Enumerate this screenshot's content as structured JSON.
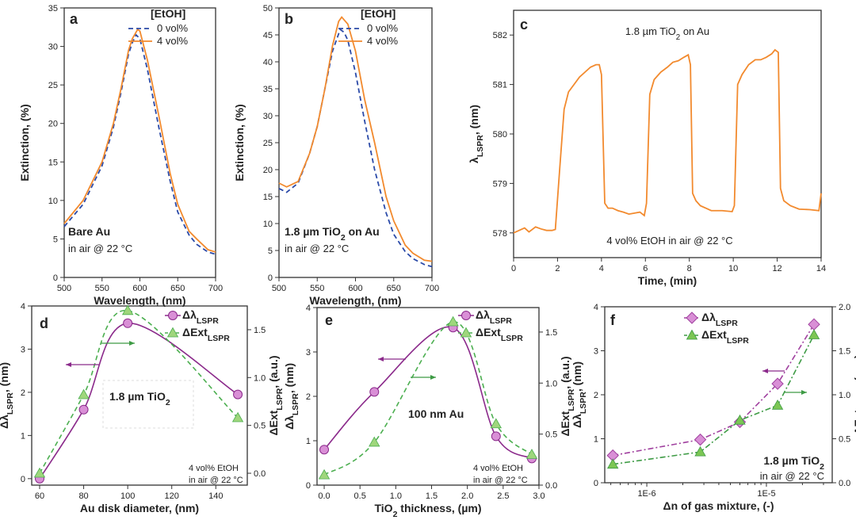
{
  "chart_data": [
    {
      "type": "line",
      "panel_label": "a",
      "xlabel": [
        {
          "t": "Wavelength, (nm)"
        }
      ],
      "ylabel": [
        {
          "t": "Extinction, (%)"
        }
      ],
      "xlim": [
        500,
        700
      ],
      "ylim": [
        0,
        35
      ],
      "xticks": [
        "500",
        "550",
        "600",
        "650",
        "700"
      ],
      "yticks": [
        "0",
        "5",
        "10",
        "15",
        "20",
        "25",
        "30",
        "35"
      ],
      "legend_title": "[EtOH]",
      "series": [
        {
          "name": "0 vol%",
          "color": "#2b4aa8",
          "dash": true,
          "points": [
            [
              500,
              6.6
            ],
            [
              525,
              9.5
            ],
            [
              550,
              14.5
            ],
            [
              565,
              19.5
            ],
            [
              575,
              24
            ],
            [
              585,
              29
            ],
            [
              590,
              30.5
            ],
            [
              595,
              31.5
            ],
            [
              600,
              31
            ],
            [
              610,
              27
            ],
            [
              625,
              19.5
            ],
            [
              640,
              12.5
            ],
            [
              650,
              8.5
            ],
            [
              665,
              5.5
            ],
            [
              675,
              4.3
            ],
            [
              690,
              3.3
            ],
            [
              700,
              3
            ]
          ]
        },
        {
          "name": "4 vol%",
          "color": "#f28a2e",
          "dash": false,
          "points": [
            [
              500,
              7
            ],
            [
              525,
              10
            ],
            [
              550,
              15
            ],
            [
              565,
              20
            ],
            [
              575,
              24.5
            ],
            [
              585,
              29.5
            ],
            [
              590,
              31
            ],
            [
              597,
              32.2
            ],
            [
              600,
              32
            ],
            [
              610,
              28.2
            ],
            [
              625,
              21
            ],
            [
              640,
              13.5
            ],
            [
              650,
              9.5
            ],
            [
              665,
              6
            ],
            [
              675,
              5
            ],
            [
              690,
              3.6
            ],
            [
              700,
              3.3
            ]
          ]
        }
      ],
      "annotations": [
        [
          {
            "t": "Bare Au"
          }
        ],
        [
          {
            "t": "in air @ 22 °C"
          }
        ]
      ]
    },
    {
      "type": "line",
      "panel_label": "b",
      "xlabel": [
        {
          "t": "Wavelength, (nm)"
        }
      ],
      "ylabel": [
        {
          "t": "Extinction, (%)"
        }
      ],
      "xlim": [
        500,
        700
      ],
      "ylim": [
        0,
        50
      ],
      "xticks": [
        "500",
        "550",
        "600",
        "650",
        "700"
      ],
      "yticks": [
        "0",
        "5",
        "10",
        "15",
        "20",
        "25",
        "30",
        "35",
        "40",
        "45",
        "50"
      ],
      "legend_title": "[EtOH]",
      "series": [
        {
          "name": "0 vol%",
          "color": "#2b4aa8",
          "dash": true,
          "points": [
            [
              500,
              16.5
            ],
            [
              510,
              15.8
            ],
            [
              525,
              17.5
            ],
            [
              540,
              23
            ],
            [
              550,
              28
            ],
            [
              560,
              35
            ],
            [
              570,
              42
            ],
            [
              580,
              46
            ],
            [
              585,
              45.5
            ],
            [
              590,
              44
            ],
            [
              600,
              38
            ],
            [
              612,
              29
            ],
            [
              625,
              20
            ],
            [
              640,
              12
            ],
            [
              650,
              8
            ],
            [
              665,
              4.8
            ],
            [
              675,
              3.5
            ],
            [
              690,
              2.4
            ],
            [
              700,
              2
            ]
          ]
        },
        {
          "name": "4 vol%",
          "color": "#f28a2e",
          "dash": false,
          "points": [
            [
              500,
              17.5
            ],
            [
              510,
              16.8
            ],
            [
              525,
              17.8
            ],
            [
              540,
              23
            ],
            [
              550,
              28
            ],
            [
              560,
              35
            ],
            [
              570,
              43
            ],
            [
              578,
              47.5
            ],
            [
              582,
              48.3
            ],
            [
              590,
              47
            ],
            [
              600,
              42
            ],
            [
              612,
              33
            ],
            [
              625,
              25
            ],
            [
              640,
              15
            ],
            [
              650,
              10.5
            ],
            [
              665,
              6
            ],
            [
              675,
              4.5
            ],
            [
              690,
              3.2
            ],
            [
              700,
              3
            ]
          ]
        }
      ],
      "annotations": [
        [
          {
            "t": "1.8 µm TiO"
          },
          {
            "t": "2",
            "sub": true
          },
          {
            "t": " on Au"
          }
        ],
        [
          {
            "t": "in air @ 22 °C"
          }
        ]
      ]
    },
    {
      "type": "line",
      "panel_label": "c",
      "xlabel": [
        {
          "t": "Time, (min)"
        }
      ],
      "ylabel": [
        {
          "t": "λ"
        },
        {
          "t": "LSPR",
          "sub": true
        },
        {
          "t": ", (nm)"
        }
      ],
      "xlim": [
        0,
        14
      ],
      "ylim": [
        577.5,
        582.5
      ],
      "xticks": [
        "0",
        "2",
        "4",
        "6",
        "8",
        "10",
        "12",
        "14"
      ],
      "yticks": [
        "578",
        "579",
        "580",
        "581",
        "582"
      ],
      "series": [
        {
          "name": "λLSPR",
          "color": "#f28a2e",
          "dash": false,
          "points": [
            [
              0,
              578.0
            ],
            [
              0.25,
              578.05
            ],
            [
              0.5,
              578.1
            ],
            [
              0.7,
              578.02
            ],
            [
              1,
              578.12
            ],
            [
              1.25,
              578.08
            ],
            [
              1.5,
              578.05
            ],
            [
              1.75,
              578.05
            ],
            [
              1.9,
              578.07
            ],
            [
              2.1,
              579.3
            ],
            [
              2.3,
              580.5
            ],
            [
              2.5,
              580.85
            ],
            [
              2.75,
              581.0
            ],
            [
              3,
              581.15
            ],
            [
              3.25,
              581.25
            ],
            [
              3.5,
              581.35
            ],
            [
              3.75,
              581.4
            ],
            [
              3.9,
              581.4
            ],
            [
              4.0,
              581.2
            ],
            [
              4.15,
              578.6
            ],
            [
              4.3,
              578.5
            ],
            [
              4.5,
              578.5
            ],
            [
              4.75,
              578.45
            ],
            [
              5,
              578.42
            ],
            [
              5.25,
              578.38
            ],
            [
              5.5,
              578.4
            ],
            [
              5.75,
              578.42
            ],
            [
              5.95,
              578.35
            ],
            [
              6.05,
              578.6
            ],
            [
              6.2,
              580.8
            ],
            [
              6.4,
              581.1
            ],
            [
              6.7,
              581.25
            ],
            [
              7,
              581.35
            ],
            [
              7.25,
              581.45
            ],
            [
              7.5,
              581.48
            ],
            [
              7.75,
              581.55
            ],
            [
              7.95,
              581.6
            ],
            [
              8.05,
              581.4
            ],
            [
              8.15,
              578.8
            ],
            [
              8.3,
              578.65
            ],
            [
              8.5,
              578.55
            ],
            [
              8.75,
              578.5
            ],
            [
              9,
              578.45
            ],
            [
              9.5,
              578.45
            ],
            [
              9.95,
              578.43
            ],
            [
              10.05,
              578.55
            ],
            [
              10.2,
              581.0
            ],
            [
              10.4,
              581.2
            ],
            [
              10.7,
              581.4
            ],
            [
              11,
              581.5
            ],
            [
              11.25,
              581.5
            ],
            [
              11.5,
              581.55
            ],
            [
              11.75,
              581.62
            ],
            [
              11.9,
              581.7
            ],
            [
              12.05,
              581.65
            ],
            [
              12.15,
              578.9
            ],
            [
              12.3,
              578.65
            ],
            [
              12.6,
              578.55
            ],
            [
              13,
              578.48
            ],
            [
              13.5,
              578.47
            ],
            [
              13.9,
              578.45
            ],
            [
              14,
              578.8
            ]
          ]
        }
      ],
      "annotations": [
        [
          {
            "t": "1.8 µm TiO"
          },
          {
            "t": "2",
            "sub": true
          },
          {
            "t": " on Au"
          }
        ],
        [
          {
            "t": "4 vol% EtOH in air @ 22 °C"
          }
        ]
      ]
    },
    {
      "type": "line",
      "panel_label": "d",
      "xlabel": [
        {
          "t": "Au disk diameter, (nm)"
        }
      ],
      "ylabel": [
        {
          "t": "Δλ"
        },
        {
          "t": "LSPR",
          "sub": true
        },
        {
          "t": ", (nm)"
        }
      ],
      "y2label": [
        {
          "t": "ΔExt"
        },
        {
          "t": "LSPR",
          "sub": true
        },
        {
          "t": ", (a.u.)"
        }
      ],
      "xlim": [
        56.4,
        154.3
      ],
      "ylim": [
        -0.15,
        4
      ],
      "y2lim": [
        -0.124,
        1.748
      ],
      "xticks": [
        "60",
        "80",
        "100",
        "120",
        "140"
      ],
      "yticks": [
        "0",
        "1",
        "2",
        "3",
        "4"
      ],
      "y2ticks": [
        "0.0",
        "0.5",
        "1.0",
        "1.5"
      ],
      "series": [
        {
          "name": "Δλ",
          "sub": "LSPR",
          "axis": "left",
          "color": "#8b2a8b",
          "marker": "circle",
          "marker_color": "#d98fd6",
          "dash": false,
          "smooth": true,
          "points": [
            [
              60,
              0
            ],
            [
              80,
              1.6
            ],
            [
              100,
              3.6
            ],
            [
              150,
              1.95
            ]
          ]
        },
        {
          "name": "ΔExt",
          "sub": "LSPR",
          "axis": "right",
          "color": "#4caf50",
          "marker": "triangle",
          "marker_color": "#9fd67c",
          "dash": true,
          "smooth": true,
          "points": [
            [
              60,
              0.0
            ],
            [
              80,
              0.82
            ],
            [
              100,
              1.7
            ],
            [
              150,
              0.58
            ]
          ]
        }
      ],
      "annotations": [
        [
          {
            "t": "1.8 µm TiO"
          },
          {
            "t": "2",
            "sub": true
          }
        ],
        [
          {
            "t": "4 vol% EtOH"
          }
        ],
        [
          {
            "t": "in air @ 22 °C"
          }
        ]
      ]
    },
    {
      "type": "line",
      "panel_label": "e",
      "xlabel": [
        {
          "t": "TiO"
        },
        {
          "t": "2",
          "sub": true
        },
        {
          "t": " thickness, (µm)"
        }
      ],
      "ylabel": [
        {
          "t": "Δλ"
        },
        {
          "t": "LSPR",
          "sub": true
        },
        {
          "t": ", (nm)"
        }
      ],
      "y2label": [
        {
          "t": "ΔExt"
        },
        {
          "t": "LSPR",
          "sub": true
        },
        {
          "t": ", (a.u.)"
        }
      ],
      "xlim": [
        -0.1,
        3.0
      ],
      "ylim": [
        0,
        4
      ],
      "y2lim": [
        0,
        1.74
      ],
      "xticks": [
        "0.0",
        "0.5",
        "1.0",
        "1.5",
        "2.0",
        "2.5",
        "3.0"
      ],
      "yticks": [
        "0",
        "1",
        "2",
        "3",
        "4"
      ],
      "y2ticks": [
        "0.0",
        "0.5",
        "1.0",
        "1.5"
      ],
      "series": [
        {
          "name": "Δλ",
          "sub": "LSPR",
          "axis": "left",
          "color": "#8b2a8b",
          "marker": "circle",
          "marker_color": "#d98fd6",
          "dash": false,
          "smooth": true,
          "points": [
            [
              0,
              0.8
            ],
            [
              0.7,
              2.1
            ],
            [
              1.8,
              3.55
            ],
            [
              2.4,
              1.1
            ],
            [
              2.9,
              0.6
            ]
          ]
        },
        {
          "name": "ΔExt",
          "sub": "LSPR",
          "axis": "right",
          "color": "#4caf50",
          "marker": "triangle",
          "marker_color": "#9fd67c",
          "dash": true,
          "smooth": true,
          "points": [
            [
              0,
              0.1
            ],
            [
              0.7,
              0.42
            ],
            [
              1.8,
              1.6
            ],
            [
              2.4,
              0.6
            ],
            [
              2.9,
              0.3
            ]
          ]
        }
      ],
      "annotations": [
        [
          {
            "t": "100 nm Au"
          }
        ],
        [
          {
            "t": "4 vol% EtOH"
          }
        ],
        [
          {
            "t": "in air @ 22 °C"
          }
        ]
      ]
    },
    {
      "type": "line",
      "panel_label": "f",
      "xscale": "log",
      "xlabel": [
        {
          "t": "Δn of gas mixture, (-)"
        }
      ],
      "ylabel": [
        {
          "t": "Δλ"
        },
        {
          "t": "LSPR",
          "sub": true
        },
        {
          "t": ", (nm)"
        }
      ],
      "y2label": [
        {
          "t": "ΔExt"
        },
        {
          "t": "LSPR",
          "sub": true
        },
        {
          "t": ", (a.u.)"
        }
      ],
      "xlim": [
        4.45e-07,
        3.55e-05
      ],
      "ylim": [
        0,
        4
      ],
      "y2lim": [
        0,
        2.0
      ],
      "xticks": [
        "1E-6",
        "1E-5"
      ],
      "yticks": [
        "0",
        "1",
        "2",
        "3",
        "4"
      ],
      "y2ticks": [
        "0.0",
        "0.5",
        "1.0",
        "1.5",
        "2.0"
      ],
      "series": [
        {
          "name": "Δλ",
          "sub": "LSPR",
          "axis": "left",
          "color": "#a0409f",
          "marker": "diamond",
          "marker_color": "#d98fd6",
          "dash": true,
          "smooth": false,
          "points": [
            [
              5.2e-07,
              0.62
            ],
            [
              2.8e-06,
              0.98
            ],
            [
              6e-06,
              1.38
            ],
            [
              1.24e-05,
              2.25
            ],
            [
              2.5e-05,
              3.6
            ]
          ]
        },
        {
          "name": "ΔExt",
          "sub": "LSPR",
          "axis": "right",
          "color": "#3e9b45",
          "marker": "triangle",
          "marker_color": "#7cc654",
          "dash": true,
          "smooth": false,
          "points": [
            [
              5.2e-07,
              0.21
            ],
            [
              2.8e-06,
              0.35
            ],
            [
              6e-06,
              0.71
            ],
            [
              1.24e-05,
              0.88
            ],
            [
              2.5e-05,
              1.68
            ]
          ]
        }
      ],
      "annotations": [
        [
          {
            "t": "1.8 µm TiO"
          },
          {
            "t": "2",
            "sub": true
          }
        ],
        [
          {
            "t": "in air @ 22 °C"
          }
        ]
      ]
    }
  ]
}
